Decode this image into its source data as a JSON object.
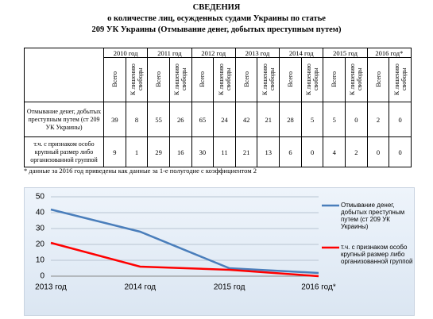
{
  "header": {
    "title": "СВЕДЕНИЯ",
    "line1": "о количестве лиц, осужденных судами Украины по статье",
    "line2": "209 УК Украины (Отмывание денег, добытых преступным путем)"
  },
  "table": {
    "years": [
      "2010 год",
      "2011 год",
      "2012 год",
      "2013 год",
      "2014 год",
      "2015 год",
      "2016 год*"
    ],
    "subheaders": [
      "Всего",
      "К лишению свободы"
    ],
    "rows": [
      {
        "label": "Отмывание денег, добытых преступным путем (ст 209 УК Украины)",
        "values": [
          39,
          8,
          55,
          26,
          65,
          24,
          42,
          21,
          28,
          5,
          5,
          0,
          2,
          0
        ]
      },
      {
        "label": "т.ч. с признаком особо крупный размер либо организованной группой",
        "values": [
          9,
          1,
          29,
          16,
          30,
          11,
          21,
          13,
          6,
          0,
          4,
          2,
          0,
          0
        ]
      }
    ]
  },
  "footnote": "* данные за 2016 год приведены как данные за 1-е полугодие  с коэффициентом 2",
  "chart_data": {
    "type": "line",
    "categories": [
      "2013 год",
      "2014 год",
      "2015 год",
      "2016 год*"
    ],
    "series": [
      {
        "name": "Отмывание денег, добытых преступным путем (ст 209 УК Украины)",
        "color": "#4a7ebb",
        "values": [
          42,
          28,
          5,
          2
        ]
      },
      {
        "name": "т.ч. с признаком особо крупный размер либо организованной группой",
        "color": "#ff0000",
        "values": [
          21,
          6,
          4,
          0
        ]
      }
    ],
    "ylim": [
      0,
      50
    ],
    "yticks": [
      0,
      10,
      20,
      30,
      40,
      50
    ],
    "grid": true
  }
}
